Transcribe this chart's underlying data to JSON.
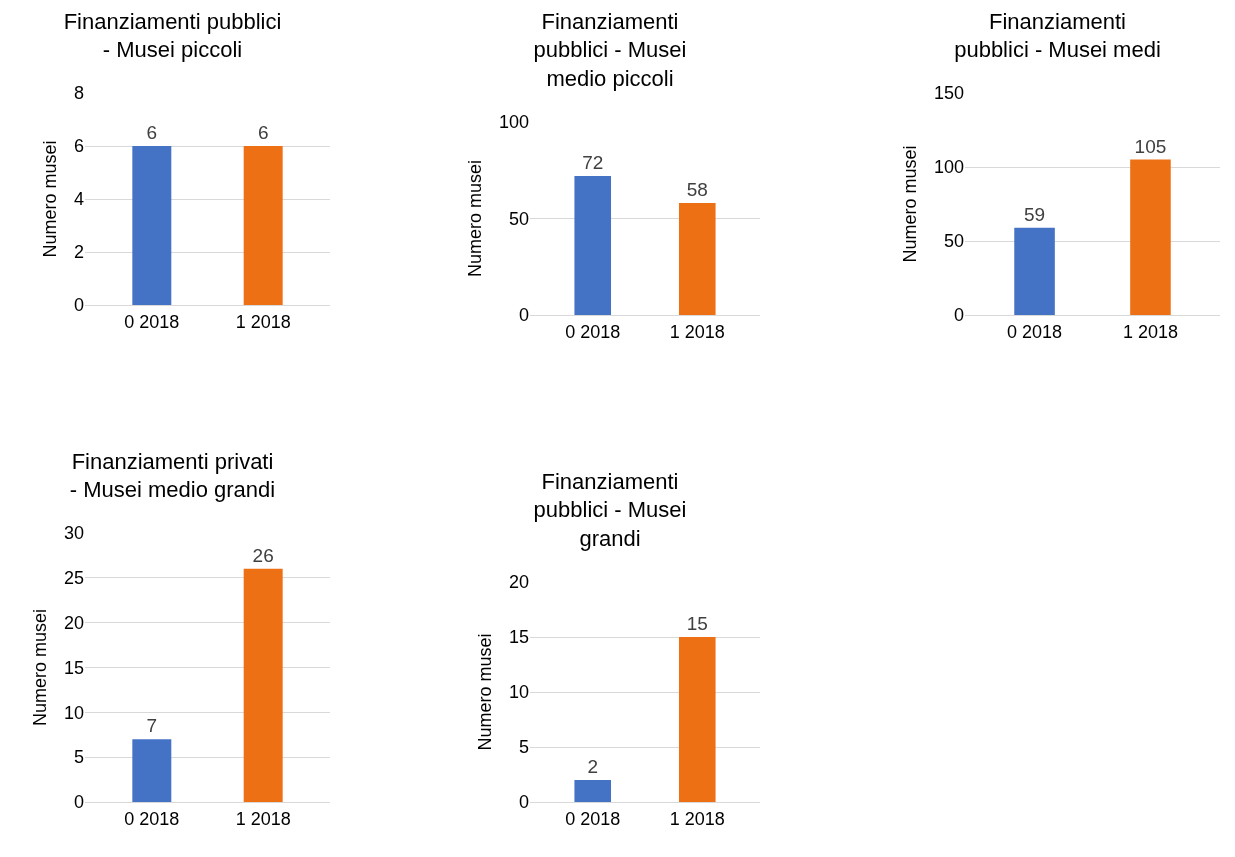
{
  "chart_data": [
    {
      "type": "bar",
      "title": "Finanziamenti pubblici - Musei piccoli",
      "ylabel": "Numero musei",
      "categories": [
        "0 2018",
        "1 2018"
      ],
      "values": [
        6,
        6
      ],
      "colors": [
        "#4472c4",
        "#ed7014"
      ],
      "ylim": [
        0,
        8
      ],
      "yticks": [
        0,
        2,
        4,
        6,
        8
      ],
      "grid": "y",
      "data_labels": true
    },
    {
      "type": "bar",
      "title": "Finanziamenti pubblici - Musei medio piccoli",
      "ylabel": "Numero musei",
      "categories": [
        "0 2018",
        "1 2018"
      ],
      "values": [
        72,
        58
      ],
      "colors": [
        "#4472c4",
        "#ed7014"
      ],
      "ylim": [
        0,
        100
      ],
      "yticks": [
        0,
        50,
        100
      ],
      "grid": "y",
      "data_labels": true
    },
    {
      "type": "bar",
      "title": "Finanziamenti pubblici - Musei medi",
      "ylabel": "Numero musei",
      "categories": [
        "0 2018",
        "1 2018"
      ],
      "values": [
        59,
        105
      ],
      "colors": [
        "#4472c4",
        "#ed7014"
      ],
      "ylim": [
        0,
        150
      ],
      "yticks": [
        0,
        50,
        100,
        150
      ],
      "grid": "y",
      "data_labels": true
    },
    {
      "type": "bar",
      "title": "Finanziamenti privati - Musei medio grandi",
      "ylabel": "Numero musei",
      "categories": [
        "0 2018",
        "1 2018"
      ],
      "values": [
        7,
        26
      ],
      "colors": [
        "#4472c4",
        "#ed7014"
      ],
      "ylim": [
        0,
        30
      ],
      "yticks": [
        0,
        5,
        10,
        15,
        20,
        25,
        30
      ],
      "grid": "y",
      "data_labels": true
    },
    {
      "type": "bar",
      "title": "Finanziamenti pubblici - Musei grandi",
      "ylabel": "Numero musei",
      "categories": [
        "0 2018",
        "1 2018"
      ],
      "values": [
        2,
        15
      ],
      "colors": [
        "#4472c4",
        "#ed7014"
      ],
      "ylim": [
        0,
        20
      ],
      "yticks": [
        0,
        5,
        10,
        15,
        20
      ],
      "grid": "y",
      "data_labels": true
    }
  ]
}
